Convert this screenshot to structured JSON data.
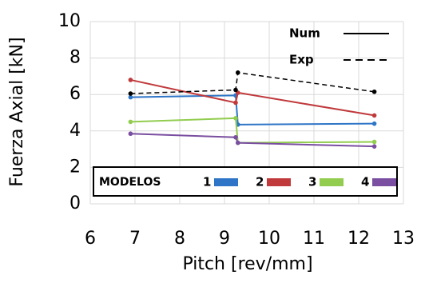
{
  "chart_data": {
    "type": "line",
    "x_label": "Pitch [rev/mm]",
    "y_label": "Fuerza Axial [kN]",
    "xlim": [
      6,
      13
    ],
    "xticks": [
      6,
      7,
      8,
      9,
      10,
      11,
      12,
      13
    ],
    "ylim": [
      0,
      10
    ],
    "yticks": [
      0,
      2,
      4,
      6,
      8,
      10
    ],
    "grid": true,
    "legend_title": "MODELOS",
    "line_styles": [
      {
        "label": "Num",
        "dash": false
      },
      {
        "label": "Exp",
        "dash": true
      }
    ],
    "series": [
      {
        "name": "1",
        "color": "#2e75c7",
        "dash": false,
        "x": [
          6.9,
          9.25,
          9.3,
          12.35
        ],
        "values": [
          5.85,
          5.95,
          4.35,
          4.4
        ]
      },
      {
        "name": "2",
        "color": "#c0393b",
        "dash": false,
        "x": [
          6.9,
          9.25,
          9.3,
          12.35
        ],
        "values": [
          6.8,
          5.55,
          6.1,
          4.85
        ]
      },
      {
        "name": "3",
        "color": "#92cd4f",
        "dash": false,
        "x": [
          6.9,
          9.25,
          9.3,
          12.35
        ],
        "values": [
          4.5,
          4.7,
          3.35,
          3.4
        ]
      },
      {
        "name": "4",
        "color": "#7a4ea0",
        "dash": false,
        "x": [
          6.9,
          9.25,
          9.3,
          12.35
        ],
        "values": [
          3.85,
          3.65,
          3.35,
          3.15
        ]
      },
      {
        "color": "#000000",
        "dash": true,
        "x": [
          6.9,
          9.25,
          9.3,
          12.35
        ],
        "values": [
          6.05,
          6.25,
          7.2,
          6.15
        ]
      }
    ]
  }
}
